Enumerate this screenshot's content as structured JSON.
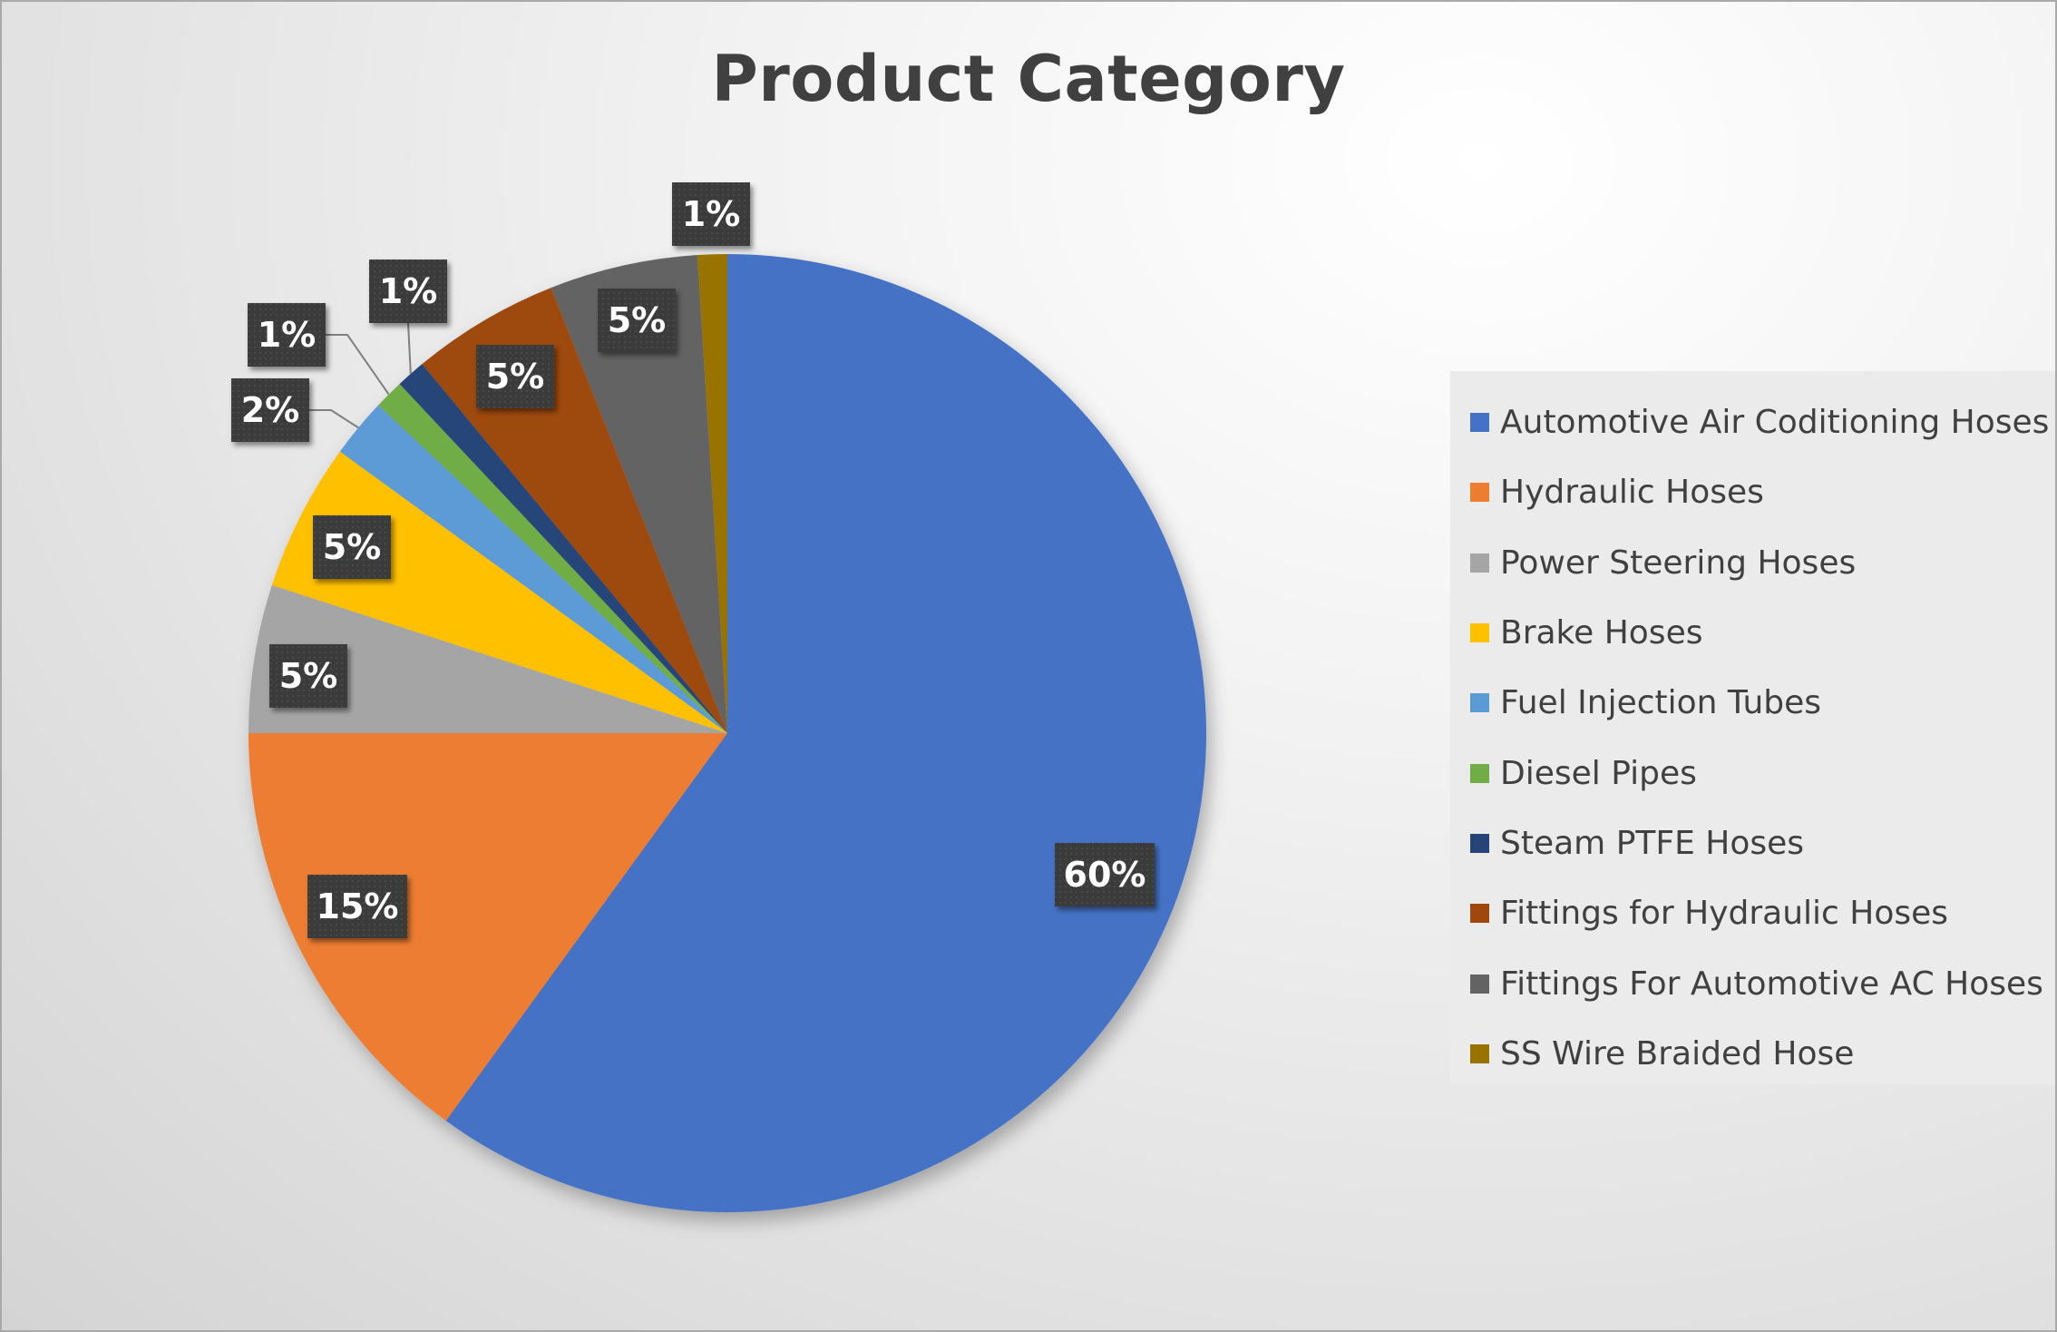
{
  "chart_data": {
    "type": "pie",
    "title": "Product Category",
    "legend_position": "right",
    "slices": [
      {
        "name": "Automotive Air Coditioning Hoses",
        "value": 60,
        "label": "60%",
        "color": "#4472C4"
      },
      {
        "name": "Hydraulic Hoses",
        "value": 15,
        "label": "15%",
        "color": "#ED7D31"
      },
      {
        "name": "Power Steering Hoses",
        "value": 5,
        "label": "5%",
        "color": "#A5A5A5"
      },
      {
        "name": "Brake Hoses",
        "value": 5,
        "label": "5%",
        "color": "#FFC000"
      },
      {
        "name": "Fuel Injection Tubes",
        "value": 2,
        "label": "2%",
        "color": "#5B9BD5"
      },
      {
        "name": "Diesel Pipes",
        "value": 1,
        "label": "1%",
        "color": "#70AD47"
      },
      {
        "name": "Steam PTFE Hoses",
        "value": 1,
        "label": "1%",
        "color": "#264478"
      },
      {
        "name": "Fittings for Hydraulic Hoses",
        "value": 5,
        "label": "5%",
        "color": "#9E480E"
      },
      {
        "name": "Fittings For Automotive AC Hoses",
        "value": 5,
        "label": "5%",
        "color": "#636363"
      },
      {
        "name": "SS Wire Braided Hose",
        "value": 1,
        "label": "1%",
        "color": "#997300"
      }
    ]
  }
}
